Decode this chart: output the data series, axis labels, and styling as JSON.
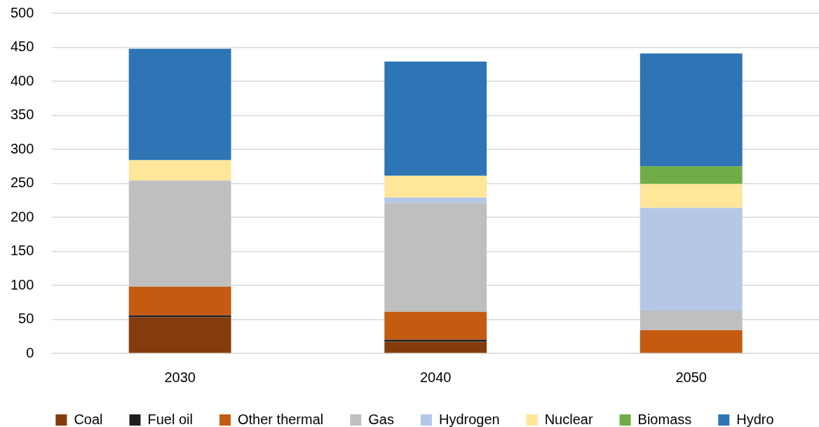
{
  "chart_data": {
    "type": "bar",
    "stacked": true,
    "categories": [
      "2030",
      "2040",
      "2050"
    ],
    "series": [
      {
        "name": "Coal",
        "color": "#843c0c",
        "values": [
          53,
          17,
          0
        ]
      },
      {
        "name": "Fuel oil",
        "color": "#1e1e1e",
        "values": [
          3,
          3,
          0
        ]
      },
      {
        "name": "Other thermal",
        "color": "#c55a11",
        "values": [
          42,
          41,
          34
        ]
      },
      {
        "name": "Gas",
        "color": "#bfbfbf",
        "values": [
          156,
          160,
          29
        ]
      },
      {
        "name": "Hydrogen",
        "color": "#b4c7e7",
        "values": [
          0,
          8,
          151
        ]
      },
      {
        "name": "Nuclear",
        "color": "#ffe699",
        "values": [
          30,
          32,
          35
        ]
      },
      {
        "name": "Biomass",
        "color": "#70ad47",
        "values": [
          0,
          0,
          26
        ]
      },
      {
        "name": "Hydro",
        "color": "#2e75b6",
        "values": [
          164,
          168,
          166
        ]
      }
    ],
    "ylim": [
      0,
      500
    ],
    "yticks": [
      0,
      50,
      100,
      150,
      200,
      250,
      300,
      350,
      400,
      450,
      500
    ],
    "grid": "y",
    "legend": "bottom"
  }
}
